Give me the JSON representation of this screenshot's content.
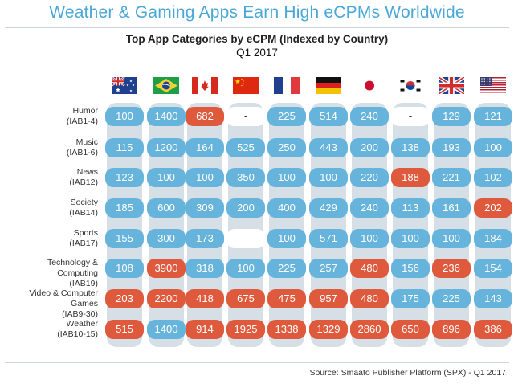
{
  "headline": "Weather & Gaming Apps Earn High eCPMs Worldwide",
  "source": "Source: Smaato Publisher Platform (SPX) - Q1 2017",
  "colors": {
    "high": "#df5a3c",
    "normal": "#66b4db",
    "missing": "#ffffff"
  },
  "chart_data": {
    "type": "table",
    "title": "Top App Categories by eCPM (Indexed by Country)",
    "subtitle": "Q1 2017",
    "columns": [
      {
        "flag": "australia-flag"
      },
      {
        "flag": "brazil-flag"
      },
      {
        "flag": "canada-flag"
      },
      {
        "flag": "china-flag"
      },
      {
        "flag": "france-flag"
      },
      {
        "flag": "germany-flag"
      },
      {
        "flag": "japan-flag"
      },
      {
        "flag": "south-korea-flag"
      },
      {
        "flag": "united-kingdom-flag"
      },
      {
        "flag": "united-states-flag"
      }
    ],
    "rows": [
      {
        "label": "Humor",
        "code": "(IAB1-4)",
        "values": [
          "100",
          "1400",
          "682",
          "-",
          "225",
          "514",
          "240",
          "-",
          "129",
          "121"
        ],
        "highlight": [
          0,
          0,
          1,
          0,
          0,
          0,
          0,
          0,
          0,
          0
        ]
      },
      {
        "label": "Music",
        "code": "(IAB1-6)",
        "values": [
          "115",
          "1200",
          "164",
          "525",
          "250",
          "443",
          "200",
          "138",
          "193",
          "100"
        ],
        "highlight": [
          0,
          0,
          0,
          0,
          0,
          0,
          0,
          0,
          0,
          0
        ]
      },
      {
        "label": "News",
        "code": "(IAB12)",
        "values": [
          "123",
          "100",
          "100",
          "350",
          "100",
          "100",
          "220",
          "188",
          "221",
          "102"
        ],
        "highlight": [
          0,
          0,
          0,
          0,
          0,
          0,
          0,
          1,
          0,
          0
        ]
      },
      {
        "label": "Society",
        "code": "(IAB14)",
        "values": [
          "185",
          "600",
          "309",
          "200",
          "400",
          "429",
          "240",
          "113",
          "161",
          "202"
        ],
        "highlight": [
          0,
          0,
          0,
          0,
          0,
          0,
          0,
          0,
          0,
          1
        ]
      },
      {
        "label": "Sports",
        "code": "(IAB17)",
        "values": [
          "155",
          "300",
          "173",
          "-",
          "100",
          "571",
          "100",
          "100",
          "100",
          "184"
        ],
        "highlight": [
          0,
          0,
          0,
          0,
          0,
          0,
          0,
          0,
          0,
          0
        ]
      },
      {
        "label": "Technology & Computing",
        "code": "(IAB19)",
        "values": [
          "108",
          "3900",
          "318",
          "100",
          "225",
          "257",
          "480",
          "156",
          "236",
          "154"
        ],
        "highlight": [
          0,
          1,
          0,
          0,
          0,
          0,
          1,
          0,
          1,
          0
        ]
      },
      {
        "label": "Video & Computer Games",
        "code": "(IAB9-30)",
        "values": [
          "203",
          "2200",
          "418",
          "675",
          "475",
          "957",
          "480",
          "175",
          "225",
          "143"
        ],
        "highlight": [
          1,
          1,
          1,
          1,
          1,
          1,
          1,
          0,
          0,
          0
        ]
      },
      {
        "label": "Weather",
        "code": "(IAB10-15)",
        "values": [
          "515",
          "1400",
          "914",
          "1925",
          "1338",
          "1329",
          "2860",
          "650",
          "896",
          "386"
        ],
        "highlight": [
          1,
          0,
          1,
          1,
          1,
          1,
          1,
          1,
          1,
          1
        ]
      }
    ]
  }
}
